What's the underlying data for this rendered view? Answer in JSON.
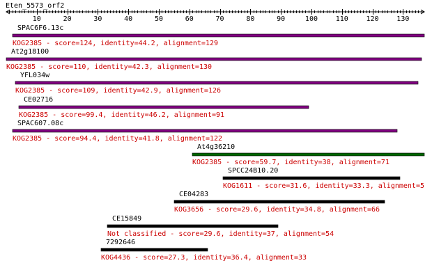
{
  "query": {
    "name": "Eten_5573_orf2",
    "length": 137,
    "axis_ticks": [
      10,
      20,
      30,
      40,
      50,
      60,
      70,
      80,
      90,
      100,
      110,
      120,
      130
    ]
  },
  "colors": {
    "axis": "#000000",
    "label": "#000000",
    "annotation": "#cc0000"
  },
  "hits": [
    {
      "name": "SPAC6F6.13c",
      "start": 2,
      "end": 137,
      "color": "#800080",
      "annotation": "KOG2385 - score=124, identity=44.2, alignment=129"
    },
    {
      "name": "At2g18100",
      "start": 0,
      "end": 136,
      "color": "#800080",
      "annotation": "KOG2385 - score=110, identity=42.3, alignment=130"
    },
    {
      "name": "YFL034w",
      "start": 3,
      "end": 135,
      "color": "#800080",
      "annotation": "KOG2385 - score=109, identity=42.9, alignment=126"
    },
    {
      "name": "CE02716",
      "start": 4,
      "end": 99,
      "color": "#800080",
      "annotation": "KOG2385 - score=99.4, identity=46.2, alignment=91"
    },
    {
      "name": "SPAC607.08c",
      "start": 2,
      "end": 128,
      "color": "#800080",
      "annotation": "KOG2385 - score=94.4, identity=41.8, alignment=122"
    },
    {
      "name": "At4g36210",
      "start": 61,
      "end": 137,
      "color": "#006400",
      "annotation": "KOG2385 - score=59.7, identity=38, alignment=71"
    },
    {
      "name": "SPCC24B10.20",
      "start": 71,
      "end": 129,
      "color": "#000000",
      "annotation": "KOG1611 - score=31.6, identity=33.3, alignment=5"
    },
    {
      "name": "CE04283",
      "start": 55,
      "end": 124,
      "color": "#000000",
      "annotation": "KOG3656 - score=29.6, identity=34.8, alignment=66"
    },
    {
      "name": "CE15849",
      "start": 33,
      "end": 89,
      "color": "#000000",
      "annotation": "Not classified - score=29.6, identity=37, alignment=54"
    },
    {
      "name": "7292646",
      "start": 31,
      "end": 66,
      "color": "#000000",
      "annotation": "KOG4436 - score=27.3, identity=36.4, alignment=33"
    }
  ]
}
